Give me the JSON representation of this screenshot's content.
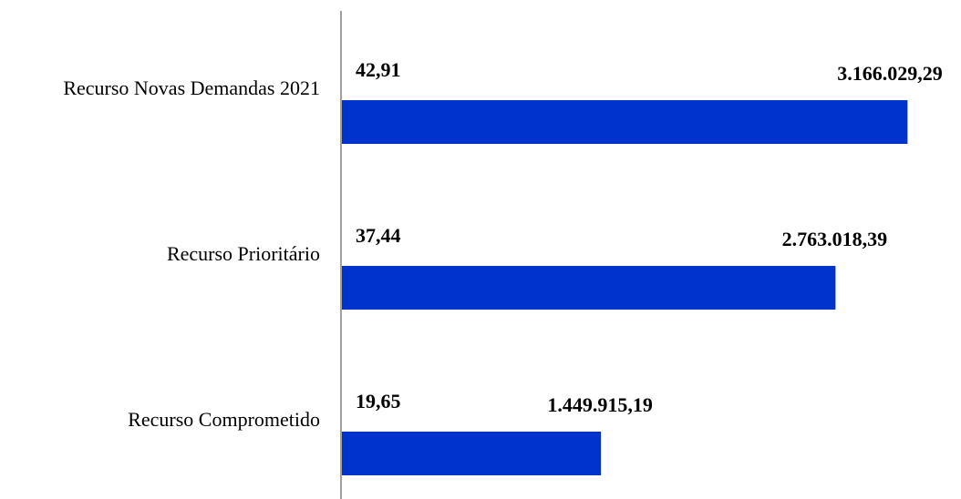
{
  "chart_data": {
    "type": "bar",
    "orientation": "horizontal",
    "title": "",
    "xlabel": "",
    "ylabel": "",
    "categories": [
      "Recurso Novas Demandas 2021",
      "Recurso Prioritário",
      "Recurso Comprometido"
    ],
    "series": [
      {
        "values": [
          3166029.29,
          2763018.39,
          1449915.19
        ]
      }
    ],
    "value_labels": [
      "3.166.029,29",
      "2.763.018,39",
      "1.449.915,19"
    ],
    "percent_values": [
      42.91,
      37.44,
      19.65
    ],
    "percent_labels": [
      "42,91",
      "37,44",
      "19,65"
    ],
    "xlim": [
      0,
      3200000
    ],
    "grid": false,
    "legend": "none",
    "bar_color": "#0033CC",
    "axis_color": "#808080"
  }
}
